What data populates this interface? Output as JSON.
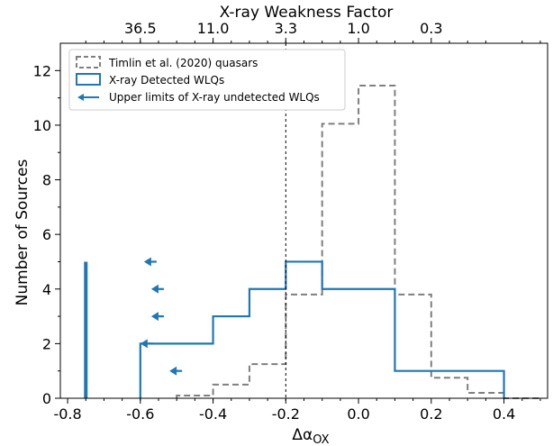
{
  "chart_data": {
    "type": "histogram",
    "xlabel": "Δα",
    "xlabel_sub": "OX",
    "ylabel": "Number of Sources",
    "top_axis_label": "X-ray Weakness Factor",
    "xlim": [
      -0.82,
      0.52
    ],
    "ylim": [
      0,
      13
    ],
    "x_ticks": [
      -0.8,
      -0.6,
      -0.4,
      -0.2,
      0.0,
      0.2,
      0.4
    ],
    "x_tick_labels": [
      "-0.8",
      "-0.6",
      "-0.4",
      "-0.2",
      "0.0",
      "0.2",
      "0.4"
    ],
    "y_ticks": [
      0,
      2,
      4,
      6,
      8,
      10,
      12
    ],
    "y_tick_labels": [
      "0",
      "2",
      "4",
      "6",
      "8",
      "10",
      "12"
    ],
    "top_ticks": [
      {
        "dalpha": -0.6,
        "label": "36.5"
      },
      {
        "dalpha": -0.4,
        "label": "11.0"
      },
      {
        "dalpha": -0.2,
        "label": "3.3"
      },
      {
        "dalpha": 0.0,
        "label": "1.0"
      },
      {
        "dalpha": 0.2,
        "label": "0.3"
      }
    ],
    "vline_x": -0.2,
    "legend_position": "upper-left",
    "series": [
      {
        "name": "Timlin et al. (2020) quasars",
        "style": "dashed",
        "color": "#7f7f7f",
        "edges": [
          -0.5,
          -0.4,
          -0.3,
          -0.2,
          -0.1,
          0.0,
          0.1,
          0.2,
          0.3,
          0.4,
          0.5
        ],
        "values": [
          0.1,
          0.5,
          1.25,
          3.8,
          10.05,
          11.45,
          3.8,
          0.75,
          0.2,
          0.0
        ]
      },
      {
        "name": "X-ray Detected WLQs",
        "style": "solid",
        "color": "#1f77b4",
        "edges": [
          -0.6,
          -0.4,
          -0.3,
          -0.2,
          -0.1,
          0.1,
          0.4
        ],
        "values": [
          2,
          3,
          4,
          5,
          4,
          1
        ]
      }
    ],
    "upper_limits": {
      "name": "Upper limits of X-ray undetected WLQs",
      "color": "#1f77b4",
      "points": [
        {
          "x": -0.59,
          "y": 5
        },
        {
          "x": -0.57,
          "y": 4
        },
        {
          "x": -0.57,
          "y": 3
        },
        {
          "x": -0.6,
          "y": 2
        },
        {
          "x": -0.52,
          "y": 1
        }
      ]
    },
    "stick_bar": {
      "x": -0.75,
      "value": 5,
      "color": "#1f77b4"
    }
  }
}
